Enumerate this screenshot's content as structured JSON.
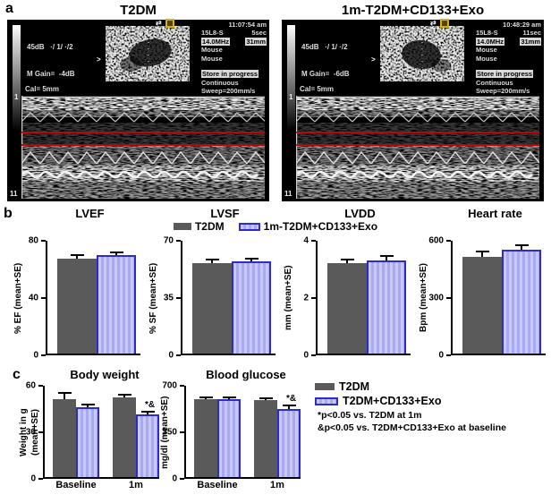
{
  "panel_a": {
    "label": "a",
    "echo_panels": [
      {
        "title": "T2DM",
        "db_line": "45dB   ·/ 1/ ·/2",
        "m_gain": "M Gain=  -4dB",
        "time": "11:07:54 am",
        "probe": "15L8-S",
        "duration": "5sec",
        "freq": "14.0MHz",
        "depth": "31mm",
        "subject1": "Mouse",
        "subject2": "Mouse",
        "store": "Store in progress",
        "mode": "Continuous",
        "sweep": "Sweep=200mm/s",
        "cal": "Cal= 5mm",
        "depth_top": "1",
        "depth_bottom": "11",
        "transfer_glyph": "⇄",
        "marker": ">"
      },
      {
        "title": "1m-T2DM+CD133+Exo",
        "db_line": "45dB   ·/ 1/ ·/2",
        "m_gain": "M Gain=  -6dB",
        "time": "10:48:29 am",
        "probe": "15L8-S",
        "duration": "11sec",
        "freq": "14.0MHz",
        "depth": "31mm",
        "subject1": "Mouse",
        "subject2": "Mouse",
        "store": "Store in progress",
        "mode": "Continuous",
        "sweep": "Sweep=200mm/s",
        "cal": "Cal= 5mm",
        "depth_top": "1",
        "depth_bottom": "11",
        "transfer_glyph": "⇄",
        "marker": ">"
      }
    ]
  },
  "panel_b": {
    "label": "b",
    "legend": [
      {
        "label": "T2DM",
        "swatch": "gray"
      },
      {
        "label": "1m-T2DM+CD133+Exo",
        "swatch": "striped"
      }
    ]
  },
  "panel_c": {
    "label": "c",
    "legend": [
      {
        "label": "T2DM",
        "swatch": "gray"
      },
      {
        "label": "T2DM+CD133+Exo",
        "swatch": "striped"
      }
    ],
    "notes": [
      "*p<0.05 vs. T2DM at 1m",
      "&p<0.05 vs. T2DM+CD133+Exo at baseline"
    ]
  },
  "colors": {
    "t2dm_bar": "#5a5a5a",
    "exo_fill_light": "#c9c9f9",
    "exo_fill_dark": "#a9a9ef",
    "exo_border": "#2b2bd0",
    "error_bar": "#000000",
    "red_depth_lines": "#d40000"
  },
  "chart_data": [
    {
      "id": "lvef",
      "type": "bar",
      "title": "LVEF",
      "ylabel": "% EF (mean+SE)",
      "ylim": [
        0,
        80
      ],
      "yticks": [
        0,
        40,
        80
      ],
      "grid": false,
      "categories": [
        ""
      ],
      "series": [
        {
          "name": "T2DM",
          "values": [
            67
          ],
          "errors": [
            2.5
          ]
        },
        {
          "name": "1m-T2DM+CD133+Exo",
          "values": [
            70
          ],
          "errors": [
            1
          ]
        }
      ]
    },
    {
      "id": "lvsf",
      "type": "bar",
      "title": "LVSF",
      "ylabel": "% SF (mean+SE)",
      "ylim": [
        0,
        70
      ],
      "yticks": [
        0,
        35,
        70
      ],
      "grid": false,
      "categories": [
        ""
      ],
      "series": [
        {
          "name": "T2DM",
          "values": [
            56
          ],
          "errors": [
            2
          ]
        },
        {
          "name": "1m-T2DM+CD133+Exo",
          "values": [
            57.5
          ],
          "errors": [
            1
          ]
        }
      ]
    },
    {
      "id": "lvdd",
      "type": "bar",
      "title": "LVDD",
      "ylabel": "mm (mean+SE)",
      "ylim": [
        0,
        4
      ],
      "yticks": [
        0,
        2,
        4
      ],
      "grid": false,
      "categories": [
        ""
      ],
      "series": [
        {
          "name": "T2DM",
          "values": [
            3.2
          ],
          "errors": [
            0.1
          ]
        },
        {
          "name": "1m-T2DM+CD133+Exo",
          "values": [
            3.3
          ],
          "errors": [
            0.13
          ]
        }
      ]
    },
    {
      "id": "hr",
      "type": "bar",
      "title": "Heart rate",
      "ylabel": "Bpm (mean+SE)",
      "ylim": [
        0,
        600
      ],
      "yticks": [
        0,
        300,
        600
      ],
      "grid": false,
      "categories": [
        ""
      ],
      "series": [
        {
          "name": "T2DM",
          "values": [
            515
          ],
          "errors": [
            25
          ]
        },
        {
          "name": "1m-T2DM+CD133+Exo",
          "values": [
            552
          ],
          "errors": [
            20
          ]
        }
      ]
    },
    {
      "id": "bw",
      "type": "bar",
      "title": "Body weight",
      "ylabel": "Weight in g (mean+SE)",
      "ylim": [
        0,
        60
      ],
      "yticks": [
        0,
        30,
        60
      ],
      "grid": false,
      "categories": [
        "Baseline",
        "1m"
      ],
      "series": [
        {
          "name": "T2DM",
          "values": [
            51,
            52.5
          ],
          "errors": [
            4,
            1
          ]
        },
        {
          "name": "T2DM+CD133+Exo",
          "values": [
            46,
            41
          ],
          "errors": [
            1.2,
            1.2
          ]
        }
      ],
      "annotations": [
        {
          "series": 1,
          "category": 1,
          "text": "*&"
        }
      ]
    },
    {
      "id": "bg",
      "type": "bar",
      "title": "Blood glucose",
      "ylabel": "mg/dl (mean+SE)",
      "ylim": [
        0,
        700
      ],
      "yticks": [
        0,
        350,
        700
      ],
      "grid": false,
      "categories": [
        "Baseline",
        "1m"
      ],
      "series": [
        {
          "name": "T2DM",
          "values": [
            595,
            590
          ],
          "errors": [
            8,
            10
          ]
        },
        {
          "name": "T2DM+CD133+Exo",
          "values": [
            600,
            525
          ],
          "errors": [
            6,
            18
          ]
        }
      ],
      "annotations": [
        {
          "series": 1,
          "category": 1,
          "text": "*&"
        }
      ]
    }
  ]
}
